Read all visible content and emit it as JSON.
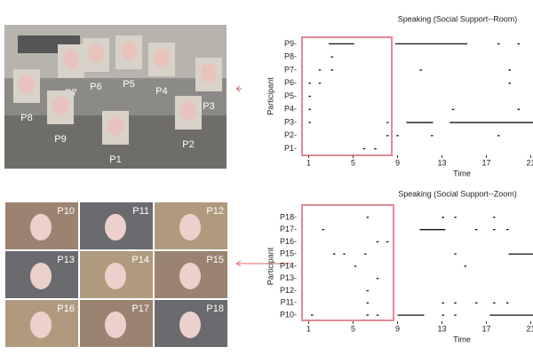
{
  "panels": {
    "room_labels": [
      "P1",
      "P2",
      "P3",
      "P4",
      "P5",
      "P6",
      "P7",
      "P8",
      "P9"
    ],
    "zoom_labels": [
      "P10",
      "P11",
      "P12",
      "P13",
      "P14",
      "P15",
      "P16",
      "P17",
      "P18"
    ]
  },
  "chart_data": [
    {
      "type": "timeline",
      "title": "Speaking (Social Support--Room)",
      "x_label": "Time",
      "y_label": "Participant",
      "categories": [
        "P1-",
        "P2-",
        "P3-",
        "P4-",
        "P5-",
        "P6-",
        "P7-",
        "P8-",
        "P9-"
      ],
      "xlim": [
        0.4,
        21.2
      ],
      "xticks": [
        1,
        5,
        9,
        13,
        17,
        21
      ],
      "segments": [
        [
          [
            5.9,
            6.1
          ],
          [
            6.9,
            7.1
          ]
        ],
        [
          [
            8,
            8.2
          ],
          [
            8.9,
            9.1
          ],
          [
            12,
            12.2
          ],
          [
            18,
            18.2
          ]
        ],
        [
          [
            1,
            1.2
          ],
          [
            8,
            8.2
          ],
          [
            9.8,
            12.2
          ],
          [
            13.7,
            21.2
          ]
        ],
        [
          [
            1,
            1.2
          ],
          [
            13.9,
            14.1
          ],
          [
            19.8,
            20
          ]
        ],
        [
          [
            1,
            1.2
          ]
        ],
        [
          [
            1,
            1.2
          ],
          [
            1.9,
            2.1
          ],
          [
            19,
            19.2
          ]
        ],
        [
          [
            1.9,
            2.1
          ],
          [
            3,
            3.2
          ],
          [
            11,
            11.2
          ],
          [
            19,
            19.2
          ]
        ],
        [
          [
            3,
            3.2
          ]
        ],
        [
          [
            2.8,
            5.1
          ],
          [
            8.8,
            15.3
          ],
          [
            18,
            18.2
          ],
          [
            19.8,
            20
          ]
        ]
      ]
    },
    {
      "type": "timeline",
      "title": "Speaking (Social Support--Zoom)",
      "x_label": "Time",
      "y_label": "Participant",
      "categories": [
        "P10-",
        "P11-",
        "P12-",
        "P13-",
        "P14-",
        "P15-",
        "P16-",
        "P17-",
        "P18-"
      ],
      "xlim": [
        0.4,
        21.2
      ],
      "xticks": [
        1,
        5,
        9,
        13,
        17,
        21
      ],
      "segments": [
        [
          [
            1.2,
            1.4
          ],
          [
            6.2,
            6.4
          ],
          [
            7.1,
            7.3
          ],
          [
            9,
            11.4
          ],
          [
            13,
            13.2
          ],
          [
            14.1,
            14.3
          ],
          [
            17.3,
            21.2
          ]
        ],
        [
          [
            6.2,
            6.4
          ],
          [
            13,
            13.2
          ],
          [
            14.1,
            14.3
          ],
          [
            16,
            16.2
          ],
          [
            17.6,
            17.8
          ],
          [
            18.8,
            19
          ]
        ],
        [
          [
            6.2,
            6.4
          ]
        ],
        [
          [
            7.1,
            7.3
          ]
        ],
        [
          [
            5.1,
            5.3
          ],
          [
            15,
            15.2
          ]
        ],
        [
          [
            3.2,
            3.4
          ],
          [
            4.1,
            4.3
          ],
          [
            6,
            6.2
          ],
          [
            14.1,
            14.3
          ],
          [
            19,
            21.2
          ]
        ],
        [
          [
            7.1,
            7.3
          ],
          [
            8,
            8.2
          ]
        ],
        [
          [
            2.2,
            2.4
          ],
          [
            11,
            13.3
          ],
          [
            16,
            16.2
          ],
          [
            17.6,
            17.8
          ],
          [
            18.8,
            19
          ]
        ],
        [
          [
            6.2,
            6.4
          ],
          [
            13,
            13.2
          ],
          [
            14.1,
            14.3
          ],
          [
            17.6,
            17.8
          ]
        ]
      ]
    }
  ]
}
